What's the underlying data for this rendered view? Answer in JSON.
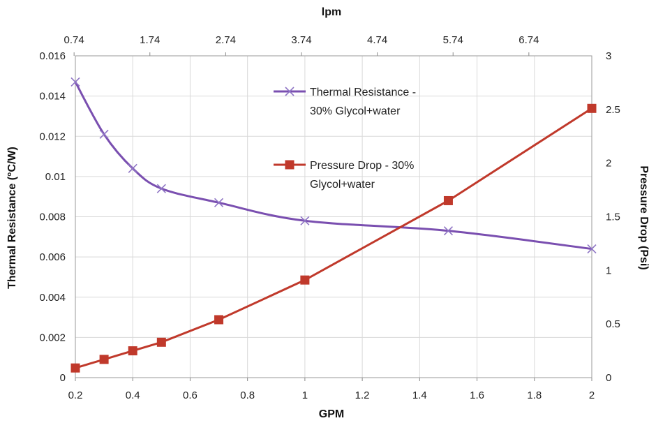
{
  "chart_data": {
    "type": "line",
    "title": "",
    "xlabel": "GPM",
    "x2label": "lpm",
    "ylabel": "Thermal Resistance (°C/W)",
    "y2label": "Pressure Drop (Psi)",
    "xlim": [
      0.2,
      2.0
    ],
    "ylim": [
      0,
      0.016
    ],
    "y2lim": [
      0,
      3
    ],
    "x_ticks": [
      "0.2",
      "0.4",
      "0.6",
      "0.8",
      "1",
      "1.2",
      "1.4",
      "1.6",
      "1.8",
      "2"
    ],
    "x2_ticks": [
      "0.74",
      "1.74",
      "2.74",
      "3.74",
      "4.74",
      "5.74",
      "6.74"
    ],
    "y_ticks": [
      "0",
      "0.002",
      "0.004",
      "0.006",
      "0.008",
      "0.01",
      "0.012",
      "0.014",
      "0.016"
    ],
    "y2_ticks": [
      "0",
      "0.5",
      "1",
      "1.5",
      "2",
      "2.5",
      "3"
    ],
    "grid": true,
    "legend_position": "top-center",
    "series": [
      {
        "name": "Thermal Resistance - 30% Glycol+water",
        "axis": "left",
        "color": "#7A4FB0",
        "marker": "x",
        "x": [
          0.2,
          0.3,
          0.4,
          0.5,
          0.7,
          1.0,
          1.5,
          2.0
        ],
        "values": [
          0.0147,
          0.0121,
          0.0104,
          0.0094,
          0.0087,
          0.0078,
          0.0073,
          0.0064
        ]
      },
      {
        "name": "Pressure Drop - 30% Glycol+water",
        "axis": "right",
        "color": "#C0392B",
        "marker": "square",
        "x": [
          0.2,
          0.3,
          0.4,
          0.5,
          0.7,
          1.0,
          1.5,
          2.0
        ],
        "values": [
          0.09,
          0.17,
          0.25,
          0.33,
          0.54,
          0.91,
          1.65,
          2.51
        ]
      }
    ],
    "legend_lines": [
      [
        "Thermal Resistance -",
        "30% Glycol+water"
      ],
      [
        "Pressure Drop - 30%",
        "Glycol+water"
      ]
    ]
  }
}
